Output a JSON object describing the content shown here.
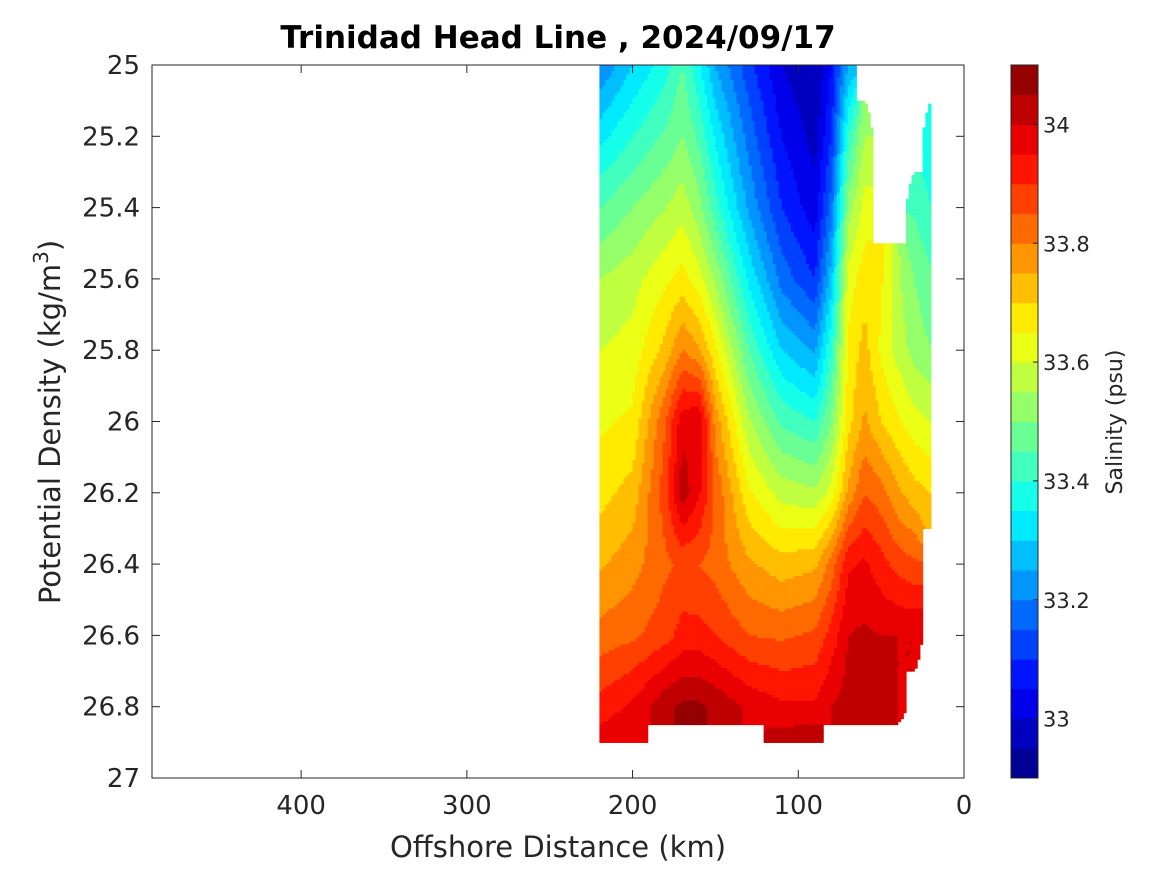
{
  "chart_data": {
    "type": "contour",
    "title": "Trinidad Head Line , 2024/09/17",
    "xlabel": "Offshore Distance (km)",
    "ylabel_main": "Potential Density (kg/m",
    "ylabel_sup": "3",
    "ylabel_close": ")",
    "xlim": [
      490,
      0
    ],
    "ylim": [
      25,
      27
    ],
    "x_reversed": true,
    "y_reversed": true,
    "x_ticks": [
      400,
      300,
      200,
      100,
      0
    ],
    "x_tick_labels": [
      "400",
      "300",
      "200",
      "100",
      "0"
    ],
    "y_ticks": [
      25,
      25.2,
      25.4,
      25.6,
      25.8,
      26,
      26.2,
      26.4,
      26.6,
      26.8,
      27
    ],
    "y_tick_labels": [
      "25",
      "25.2",
      "25.4",
      "25.6",
      "25.8",
      "26",
      "26.2",
      "26.4",
      "26.6",
      "26.8",
      "27"
    ],
    "colorbar": {
      "label": "Salinity (psu)",
      "range": [
        32.9,
        34.1
      ],
      "levels": 24,
      "ticks": [
        33,
        33.2,
        33.4,
        33.6,
        33.8,
        34
      ],
      "tick_labels": [
        "33",
        "33.2",
        "33.4",
        "33.6",
        "33.8",
        "34"
      ],
      "colormap": "jet"
    },
    "x": [
      220,
      200,
      180,
      170,
      160,
      150,
      130,
      110,
      90,
      80,
      70,
      60,
      50,
      40,
      30,
      20
    ],
    "y": [
      25,
      25.2,
      25.4,
      25.6,
      25.8,
      26,
      26.2,
      26.4,
      26.6,
      26.8,
      26.9
    ],
    "z": [
      [
        33.2,
        33.3,
        33.38,
        33.45,
        33.36,
        33.25,
        33.12,
        33.0,
        32.95,
        33.05,
        33.25,
        null,
        null,
        null,
        null,
        null
      ],
      [
        33.33,
        33.4,
        33.46,
        33.5,
        33.44,
        33.34,
        33.18,
        33.05,
        32.98,
        33.1,
        33.4,
        33.55,
        null,
        null,
        null,
        33.36
      ],
      [
        33.45,
        33.5,
        33.55,
        33.58,
        33.52,
        33.42,
        33.24,
        33.1,
        33.02,
        33.18,
        33.52,
        33.62,
        null,
        null,
        33.44,
        33.4
      ],
      [
        33.55,
        33.58,
        33.64,
        33.67,
        33.62,
        33.54,
        33.34,
        33.18,
        33.1,
        33.28,
        33.62,
        33.68,
        33.66,
        33.56,
        33.5,
        33.46
      ],
      [
        33.6,
        33.62,
        33.72,
        33.8,
        33.76,
        33.66,
        33.45,
        33.3,
        33.24,
        33.4,
        33.66,
        33.72,
        33.64,
        33.58,
        33.53,
        33.5
      ],
      [
        33.64,
        33.66,
        33.85,
        33.98,
        34.0,
        33.78,
        33.56,
        33.44,
        33.4,
        33.5,
        33.68,
        33.76,
        33.7,
        33.66,
        33.62,
        33.6
      ],
      [
        33.68,
        33.72,
        33.88,
        34.03,
        33.96,
        33.84,
        33.66,
        33.58,
        33.56,
        33.62,
        33.76,
        33.85,
        33.82,
        33.76,
        33.72,
        33.7
      ],
      [
        33.74,
        33.78,
        33.84,
        33.86,
        33.85,
        33.83,
        33.76,
        33.72,
        33.74,
        33.82,
        33.94,
        33.96,
        33.92,
        33.88,
        33.86,
        null
      ],
      [
        33.82,
        33.84,
        33.88,
        33.92,
        33.92,
        33.9,
        33.85,
        33.84,
        33.86,
        33.92,
        34.0,
        34.01,
        34.0,
        34.0,
        34.0,
        null
      ],
      [
        33.92,
        33.96,
        34.04,
        34.06,
        34.06,
        34.04,
        33.99,
        33.96,
        33.96,
        34.0,
        34.02,
        34.05,
        34.04,
        34.0,
        null,
        null
      ],
      [
        33.98,
        34.0,
        null,
        null,
        null,
        null,
        null,
        34.03,
        34.04,
        null,
        null,
        null,
        null,
        null,
        null,
        null
      ]
    ]
  }
}
